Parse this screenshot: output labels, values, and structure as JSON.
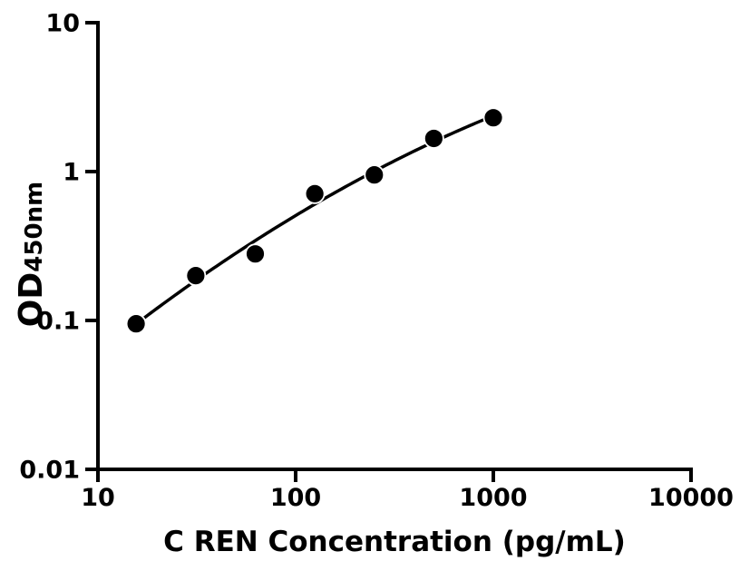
{
  "figure": {
    "background_color": "#ffffff",
    "foreground_color": "#000000"
  },
  "chart_data": {
    "type": "scatter",
    "subtype": "elisa-standard-curve",
    "title": "",
    "xlabel": "C REN Concentration (pg/mL)",
    "ylabel": "OD",
    "ylabel_subscript": "450nm",
    "x_scale": "log10",
    "y_scale": "log10",
    "xlim": [
      10,
      10000
    ],
    "ylim": [
      0.01,
      10
    ],
    "grid": false,
    "legend": "none",
    "x_ticks": [
      {
        "value": 10,
        "label": "10"
      },
      {
        "value": 100,
        "label": "100"
      },
      {
        "value": 1000,
        "label": "1000"
      },
      {
        "value": 10000,
        "label": "10000"
      }
    ],
    "y_ticks": [
      {
        "value": 0.01,
        "label": "0.01"
      },
      {
        "value": 0.1,
        "label": "0.1"
      },
      {
        "value": 1,
        "label": "1"
      },
      {
        "value": 10,
        "label": "10"
      }
    ],
    "series": [
      {
        "name": "standard-points",
        "marker": "filled-circle",
        "marker_color": "#000000",
        "points": [
          {
            "x": 15.6,
            "y": 0.095
          },
          {
            "x": 31.25,
            "y": 0.2
          },
          {
            "x": 62.5,
            "y": 0.28
          },
          {
            "x": 125,
            "y": 0.71
          },
          {
            "x": 250,
            "y": 0.95
          },
          {
            "x": 500,
            "y": 1.67
          },
          {
            "x": 1000,
            "y": 2.3
          }
        ]
      }
    ],
    "fit_curve": {
      "style": "smooth-loglog-fit",
      "color": "#000000",
      "x_range": [
        15.6,
        1000
      ]
    }
  }
}
